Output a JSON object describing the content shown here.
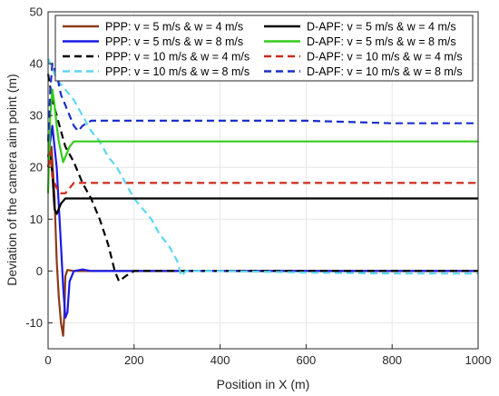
{
  "chart_data": {
    "type": "line",
    "xlabel": "Position in X (m)",
    "ylabel": "Deviation of the camera aim point (m)",
    "xlim": [
      0,
      1000
    ],
    "ylim": [
      -15,
      50
    ],
    "xticks": [
      0,
      200,
      400,
      600,
      800,
      1000
    ],
    "yticks": [
      -10,
      0,
      10,
      20,
      30,
      40,
      50
    ],
    "grid": true,
    "legend": {
      "placement": "top",
      "columns": 2
    },
    "series": [
      {
        "name": "PPP: v = 5 m/s & w = 4 m/s",
        "color": "#8B3A1A",
        "style": "solid",
        "x": [
          0,
          8,
          15,
          20,
          25,
          30,
          35,
          38,
          40,
          45,
          60,
          100,
          200,
          400,
          600,
          800,
          1000
        ],
        "y": [
          20,
          24,
          14,
          2,
          -5,
          -10,
          -12.5,
          -8,
          -1,
          0.2,
          0,
          0,
          0,
          0,
          0,
          0,
          0
        ]
      },
      {
        "name": "PPP: v = 5 m/s & w = 8 m/s",
        "color": "#1A1AE6",
        "style": "solid",
        "x": [
          0,
          10,
          20,
          30,
          35,
          40,
          45,
          50,
          60,
          80,
          100,
          200,
          400,
          600,
          800,
          1000
        ],
        "y": [
          22,
          28,
          20,
          5,
          -3,
          -9,
          -8,
          -2,
          0,
          0.3,
          0,
          0,
          0,
          0,
          0,
          0
        ]
      },
      {
        "name": "PPP: v = 10 m/s & w = 4 m/s",
        "color": "#000000",
        "style": "dashed",
        "x": [
          0,
          10,
          20,
          30,
          40,
          60,
          80,
          100,
          120,
          140,
          155,
          165,
          180,
          200,
          400,
          600,
          800,
          1000
        ],
        "y": [
          38,
          33,
          30,
          27,
          24,
          21,
          17,
          14,
          10,
          5,
          0,
          -2,
          -1,
          0,
          0,
          0,
          0,
          0
        ]
      },
      {
        "name": "PPP: v = 10 m/s & w = 8 m/s",
        "color": "#5CD6F2",
        "style": "dashed",
        "x": [
          0,
          20,
          40,
          60,
          80,
          100,
          120,
          140,
          160,
          180,
          200,
          220,
          240,
          260,
          280,
          300,
          310,
          320,
          400,
          600,
          800,
          1000
        ],
        "y": [
          41,
          37,
          35,
          33,
          30,
          27,
          25,
          22,
          20,
          17,
          14,
          12,
          10,
          7,
          5,
          2,
          -1,
          0,
          0,
          -0.3,
          -0.5,
          -0.5
        ]
      },
      {
        "name": "D-APF: v = 5 m/s & w = 4 m/s",
        "color": "#000000",
        "style": "solid",
        "x": [
          0,
          5,
          10,
          15,
          20,
          30,
          40,
          60,
          100,
          200,
          400,
          600,
          800,
          1000
        ],
        "y": [
          20,
          22,
          19,
          12,
          11,
          13,
          14,
          14,
          14,
          14,
          14,
          14,
          14,
          14
        ]
      },
      {
        "name": "D-APF: v = 5 m/s & w = 8 m/s",
        "color": "#33CC1A",
        "style": "solid",
        "x": [
          0,
          5,
          10,
          15,
          20,
          25,
          30,
          35,
          40,
          50,
          60,
          80,
          100,
          200,
          400,
          600,
          800,
          1000
        ],
        "y": [
          15,
          30,
          35,
          32,
          28,
          25,
          23,
          21,
          22,
          24,
          25,
          25,
          25,
          25,
          25,
          25,
          25,
          25
        ]
      },
      {
        "name": "D-APF: v = 10 m/s & w = 4 m/s",
        "color": "#CC2A1A",
        "style": "dashed",
        "x": [
          0,
          5,
          10,
          20,
          30,
          40,
          50,
          60,
          100,
          200,
          400,
          600,
          800,
          1000
        ],
        "y": [
          20,
          23,
          18,
          16,
          15,
          15,
          16,
          17,
          17,
          17,
          17,
          17,
          17,
          17
        ]
      },
      {
        "name": "D-APF: v = 10 m/s & w = 8 m/s",
        "color": "#1A2ECC",
        "style": "dashed",
        "x": [
          0,
          5,
          10,
          20,
          30,
          40,
          50,
          60,
          70,
          80,
          100,
          200,
          400,
          600,
          800,
          1000
        ],
        "y": [
          25,
          35,
          40,
          38,
          34,
          32,
          30,
          28,
          27,
          28,
          29,
          29,
          29,
          29,
          28.5,
          28.5
        ]
      }
    ]
  }
}
